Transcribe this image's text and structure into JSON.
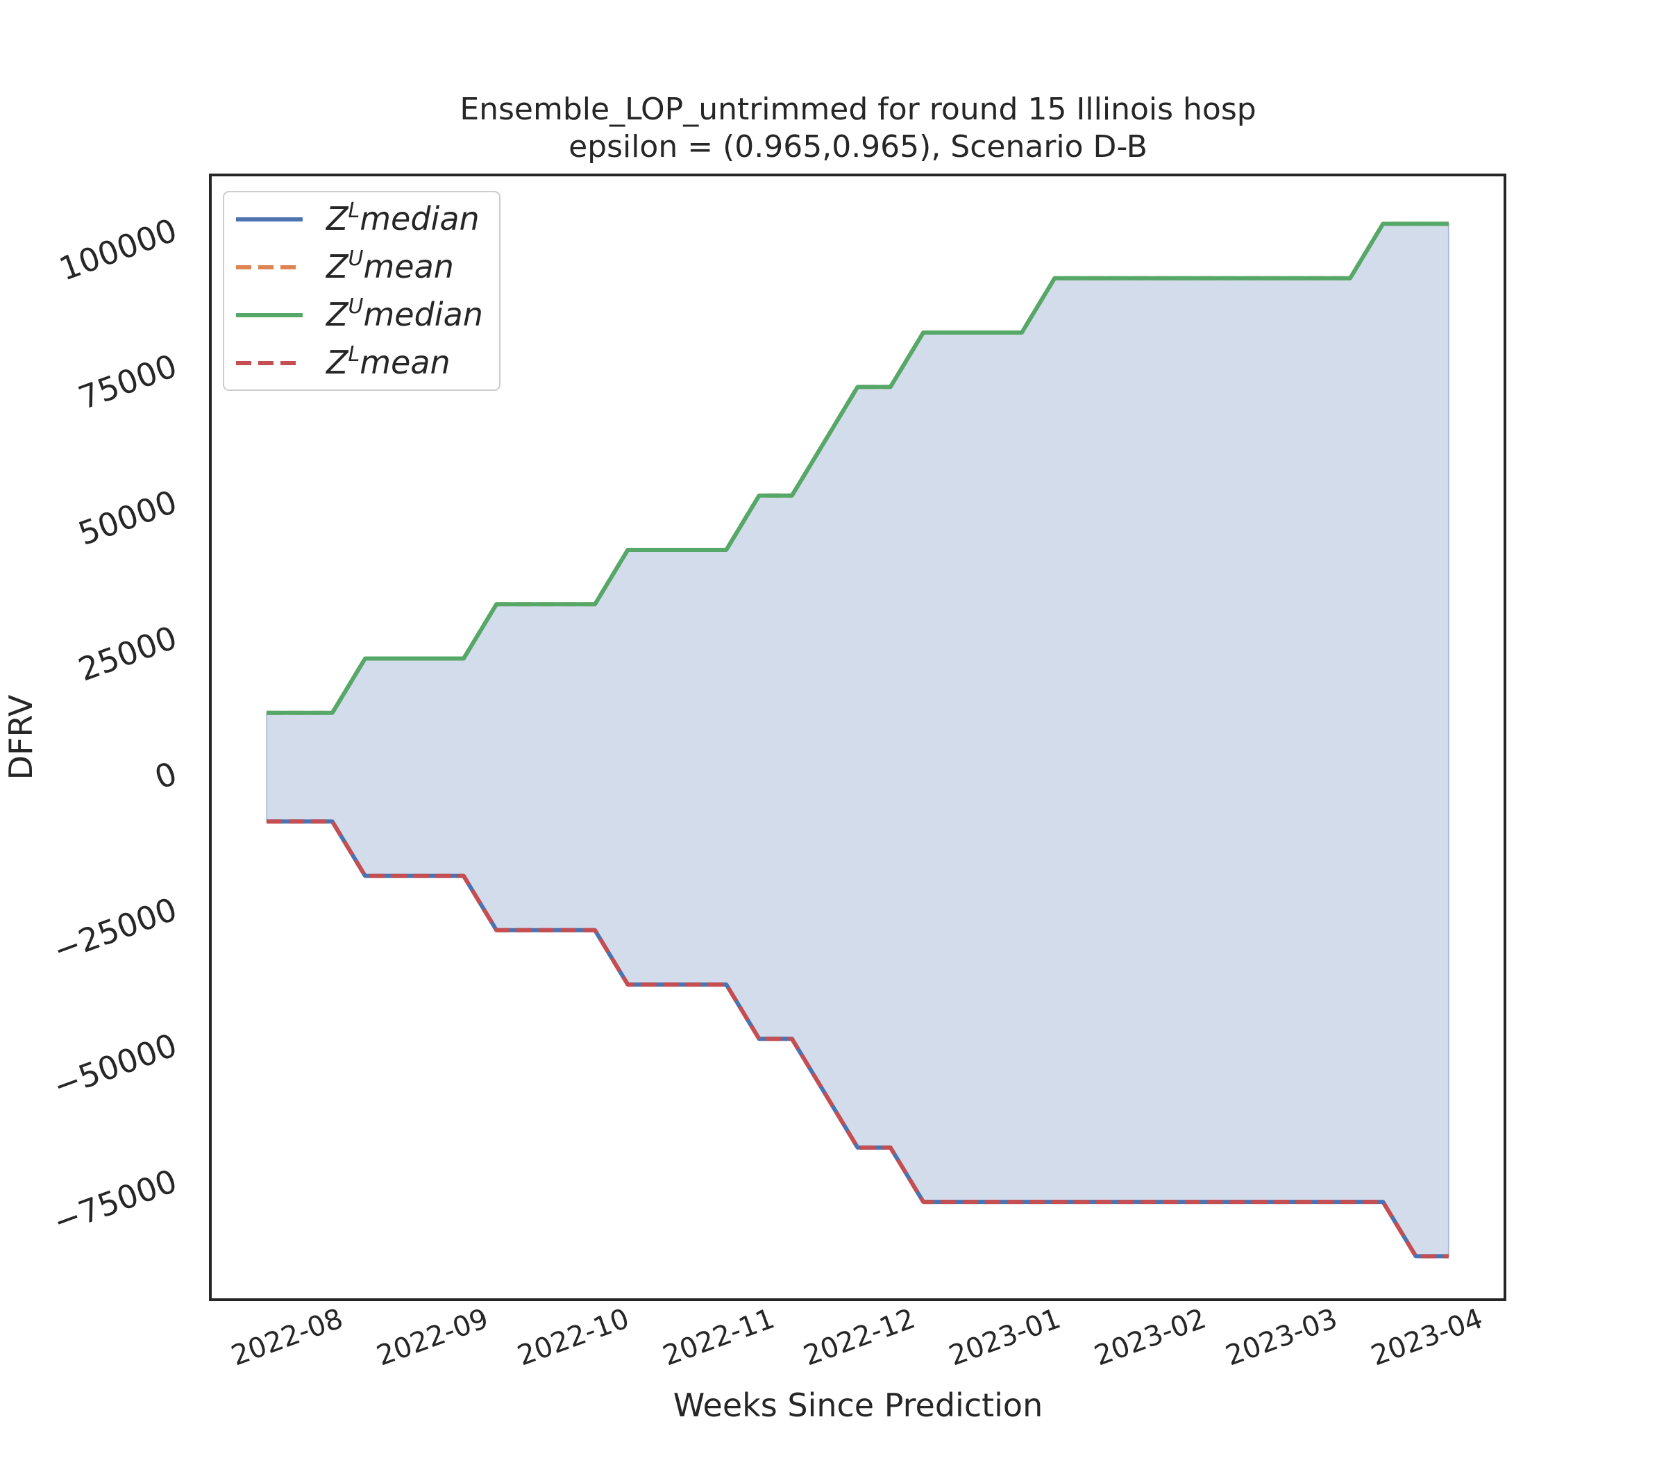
{
  "chart_data": {
    "type": "line",
    "title": "Ensemble_LOP_untrimmed for round 15 Illinois  hosp",
    "subtitle": "epsilon = (0.965,0.965), Scenario D-B",
    "xlabel": "Weeks Since Prediction",
    "ylabel": "DFRV",
    "ylim": [
      -97000,
      110000
    ],
    "yticks": [
      100000,
      75000,
      50000,
      25000,
      0,
      -25000,
      -50000,
      -75000
    ],
    "ytick_labels": [
      "100000",
      "75000",
      "50000",
      "25000",
      "0",
      "−25000",
      "−50000",
      "−75000"
    ],
    "xrange": [
      "2022-07-06",
      "2023-04-08"
    ],
    "xticks": [
      "2022-08-01",
      "2022-09-01",
      "2022-10-01",
      "2022-11-01",
      "2022-12-01",
      "2023-01-01",
      "2023-02-01",
      "2023-03-01",
      "2023-04-01"
    ],
    "xtick_labels": [
      "2022-08",
      "2022-09",
      "2022-10",
      "2022-11",
      "2022-12",
      "2023-01",
      "2023-02",
      "2023-03",
      "2023-04"
    ],
    "x": [
      "2022-07-18",
      "2022-07-25",
      "2022-08-01",
      "2022-08-08",
      "2022-08-15",
      "2022-08-22",
      "2022-08-29",
      "2022-09-05",
      "2022-09-12",
      "2022-09-19",
      "2022-09-26",
      "2022-10-03",
      "2022-10-10",
      "2022-10-17",
      "2022-10-24",
      "2022-10-31",
      "2022-11-07",
      "2022-11-14",
      "2022-11-21",
      "2022-11-28",
      "2022-12-05",
      "2022-12-12",
      "2022-12-19",
      "2022-12-26",
      "2023-01-02",
      "2023-01-09",
      "2023-01-16",
      "2023-01-23",
      "2023-01-30",
      "2023-02-06",
      "2023-02-13",
      "2023-02-20",
      "2023-02-27",
      "2023-03-06",
      "2023-03-13",
      "2023-03-20",
      "2023-03-27"
    ],
    "series": [
      {
        "name": "Z^L median",
        "color": "#4c72b0",
        "style": "solid",
        "values": [
          -9000,
          -9000,
          -9000,
          -19000,
          -19000,
          -19000,
          -19000,
          -29000,
          -29000,
          -29000,
          -29000,
          -39000,
          -39000,
          -39000,
          -39000,
          -49000,
          -49000,
          -59000,
          -69000,
          -69000,
          -79000,
          -79000,
          -79000,
          -79000,
          -79000,
          -79000,
          -79000,
          -79000,
          -79000,
          -79000,
          -79000,
          -79000,
          -79000,
          -79000,
          -79000,
          -89000,
          -89000
        ]
      },
      {
        "name": "Z^U mean",
        "color": "#dd8452",
        "style": "dashed",
        "values": [
          11000,
          11000,
          11000,
          21000,
          21000,
          21000,
          21000,
          31000,
          31000,
          31000,
          31000,
          41000,
          41000,
          41000,
          41000,
          51000,
          51000,
          61000,
          71000,
          71000,
          81000,
          81000,
          81000,
          81000,
          91000,
          91000,
          91000,
          91000,
          91000,
          91000,
          91000,
          91000,
          91000,
          91000,
          101000,
          101000,
          101000
        ]
      },
      {
        "name": "Z^U median",
        "color": "#55a868",
        "style": "solid",
        "values": [
          11000,
          11000,
          11000,
          21000,
          21000,
          21000,
          21000,
          31000,
          31000,
          31000,
          31000,
          41000,
          41000,
          41000,
          41000,
          51000,
          51000,
          61000,
          71000,
          71000,
          81000,
          81000,
          81000,
          81000,
          91000,
          91000,
          91000,
          91000,
          91000,
          91000,
          91000,
          91000,
          91000,
          91000,
          101000,
          101000,
          101000
        ]
      },
      {
        "name": "Z^L mean",
        "color": "#c44e52",
        "style": "dashed",
        "values": [
          -9000,
          -9000,
          -9000,
          -19000,
          -19000,
          -19000,
          -19000,
          -29000,
          -29000,
          -29000,
          -29000,
          -39000,
          -39000,
          -39000,
          -39000,
          -49000,
          -49000,
          -59000,
          -69000,
          -69000,
          -79000,
          -79000,
          -79000,
          -79000,
          -79000,
          -79000,
          -79000,
          -79000,
          -79000,
          -79000,
          -79000,
          -79000,
          -79000,
          -79000,
          -79000,
          -89000,
          -89000
        ]
      }
    ],
    "fill_between": {
      "lower": "Z^L median",
      "upper": "Z^U median",
      "color": "#4c72b0",
      "opacity": 0.25
    },
    "legend": {
      "position": "top-left",
      "entries": [
        {
          "base": "Z",
          "sup": "L",
          "word": "median",
          "color": "#4c72b0",
          "style": "solid"
        },
        {
          "base": "Z",
          "sup": "U",
          "word": "mean",
          "color": "#dd8452",
          "style": "dashed"
        },
        {
          "base": "Z",
          "sup": "U",
          "word": "median",
          "color": "#55a868",
          "style": "solid"
        },
        {
          "base": "Z",
          "sup": "L",
          "word": "mean",
          "color": "#c44e52",
          "style": "dashed"
        }
      ]
    },
    "grid": false
  }
}
